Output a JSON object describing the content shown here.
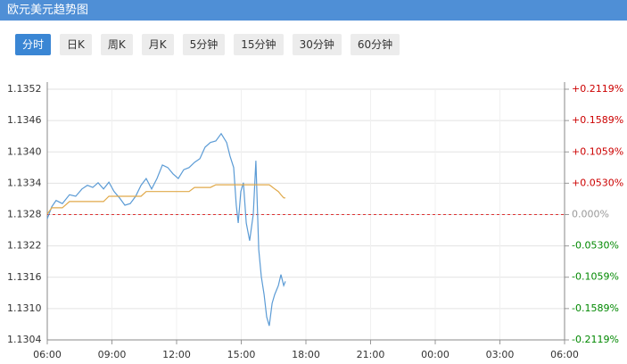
{
  "chart_data": {
    "type": "line",
    "title": "欧元美元趋势图",
    "tabs": [
      "分时",
      "日K",
      "周K",
      "月K",
      "5分钟",
      "15分钟",
      "30分钟",
      "60分钟"
    ],
    "x": [
      0,
      0.21,
      0.41,
      0.7,
      1.03,
      1.32,
      1.61,
      1.86,
      2.11,
      2.36,
      2.61,
      2.86,
      3.1,
      3.35,
      3.6,
      3.85,
      4.1,
      4.35,
      4.59,
      4.84,
      5.09,
      5.34,
      5.59,
      5.83,
      6.08,
      6.33,
      6.58,
      6.83,
      7.08,
      7.32,
      7.57,
      7.82,
      8.07,
      8.32,
      8.48,
      8.65,
      8.77,
      8.86,
      8.98,
      9.1,
      9.23,
      9.39,
      9.56,
      9.68,
      9.81,
      9.93,
      10.06,
      10.18,
      10.3,
      10.43,
      10.55,
      10.72,
      10.84,
      10.97,
      11.05
    ],
    "series": [
      {
        "color": "#5b9bd5",
        "values": [
          1.13272,
          1.13295,
          1.13307,
          1.13301,
          1.13318,
          1.13315,
          1.13329,
          1.13336,
          1.13332,
          1.13341,
          1.13329,
          1.13342,
          1.13324,
          1.13312,
          1.13298,
          1.13301,
          1.13315,
          1.13336,
          1.13349,
          1.13329,
          1.13349,
          1.13375,
          1.1337,
          1.13358,
          1.13349,
          1.13366,
          1.1337,
          1.1338,
          1.13387,
          1.13409,
          1.13418,
          1.13421,
          1.13435,
          1.13418,
          1.13392,
          1.1337,
          1.13298,
          1.13264,
          1.13324,
          1.13341,
          1.13264,
          1.1323,
          1.13281,
          1.13383,
          1.13213,
          1.13161,
          1.13127,
          1.13084,
          1.13067,
          1.1311,
          1.13127,
          1.13144,
          1.13165,
          1.13144,
          1.13152
        ]
      },
      {
        "color": "#e0a94a",
        "values": [
          1.13281,
          1.13293,
          1.13293,
          1.13293,
          1.13305,
          1.13305,
          1.13305,
          1.13305,
          1.13305,
          1.13305,
          1.13305,
          1.13315,
          1.13315,
          1.13315,
          1.13315,
          1.13315,
          1.13315,
          1.13315,
          1.13324,
          1.13324,
          1.13324,
          1.13324,
          1.13324,
          1.13324,
          1.13324,
          1.13324,
          1.13324,
          1.13332,
          1.13332,
          1.13332,
          1.13332,
          1.13337,
          1.13337,
          1.13337,
          1.13337,
          1.13337,
          1.13337,
          1.13337,
          1.13337,
          1.13337,
          1.13337,
          1.13337,
          1.13337,
          1.13337,
          1.13337,
          1.13337,
          1.13337,
          1.13337,
          1.13337,
          1.13333,
          1.13329,
          1.13324,
          1.13318,
          1.13312,
          1.13312
        ]
      }
    ],
    "baseline": 1.1328,
    "xlim": [
      0,
      24
    ],
    "xticks": [
      {
        "value": 0,
        "label": "06:00"
      },
      {
        "value": 3,
        "label": "09:00"
      },
      {
        "value": 6,
        "label": "12:00"
      },
      {
        "value": 9,
        "label": "15:00"
      },
      {
        "value": 12,
        "label": "18:00"
      },
      {
        "value": 15,
        "label": "21:00"
      },
      {
        "value": 18,
        "label": "00:00"
      },
      {
        "value": 21,
        "label": "03:00"
      },
      {
        "value": 24,
        "label": "06:00"
      }
    ],
    "ylim": [
      1.1304,
      1.1352
    ],
    "yticks": [
      1.1352,
      1.1346,
      {
        "value": 1.134,
        "label": "1.1340"
      },
      1.1334,
      1.1328,
      1.1322,
      1.1316,
      {
        "value": 1.131,
        "label": "1.1310"
      },
      1.1304
    ],
    "y2lim": [
      -0.2119,
      0.2119
    ],
    "y2ticks": [
      {
        "value": 0.2119,
        "label": "+0.2119%"
      },
      {
        "value": 0.1589,
        "label": "+0.1589%"
      },
      {
        "value": 0.1059,
        "label": "+0.1059%"
      },
      {
        "value": 0.053,
        "label": "+0.0530%"
      },
      {
        "value": 0,
        "label": "0.000%"
      },
      {
        "value": -0.053,
        "label": "-0.0530%"
      },
      {
        "value": -0.1059,
        "label": "-0.1059%"
      },
      {
        "value": -0.1589,
        "label": "-0.1589%"
      },
      {
        "value": -0.2119,
        "label": "-0.2119%"
      }
    ],
    "grid": true
  }
}
